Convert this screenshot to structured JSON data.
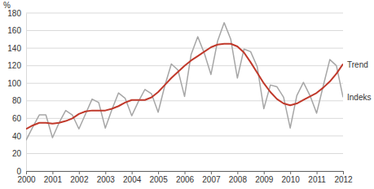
{
  "chart_data": {
    "type": "line",
    "y_label": "%",
    "x": [
      2000,
      2000.25,
      2000.5,
      2000.75,
      2001,
      2001.25,
      2001.5,
      2001.75,
      2002,
      2002.25,
      2002.5,
      2002.75,
      2003,
      2003.25,
      2003.5,
      2003.75,
      2004,
      2004.25,
      2004.5,
      2004.75,
      2005,
      2005.25,
      2005.5,
      2005.75,
      2006,
      2006.25,
      2006.5,
      2006.75,
      2007,
      2007.25,
      2007.5,
      2007.75,
      2008,
      2008.25,
      2008.5,
      2008.75,
      2009,
      2009.25,
      2009.5,
      2009.75,
      2010,
      2010.25,
      2010.5,
      2010.75,
      2011,
      2011.25,
      2011.5,
      2011.75,
      2012
    ],
    "series": [
      {
        "name": "Indeks",
        "color": "#a6a6a6",
        "values": [
          35,
          50,
          64,
          64,
          38,
          55,
          69,
          64,
          48,
          65,
          82,
          78,
          49,
          70,
          89,
          83,
          63,
          79,
          93,
          88,
          67,
          97,
          122,
          115,
          85,
          133,
          153,
          134,
          110,
          148,
          169,
          150,
          106,
          139,
          136,
          119,
          71,
          98,
          96,
          84,
          49,
          86,
          101,
          86,
          66,
          97,
          127,
          120,
          84
        ]
      },
      {
        "name": "Trend",
        "color": "#c0392b",
        "values": [
          48,
          52,
          55,
          55,
          54,
          55,
          57,
          60,
          65,
          68,
          69,
          69,
          69,
          71,
          74,
          78,
          81,
          81,
          81,
          84,
          90,
          98,
          106,
          113,
          120,
          126,
          131,
          136,
          141,
          144,
          145,
          145,
          142,
          135,
          124,
          112,
          100,
          90,
          82,
          77,
          75,
          77,
          81,
          85,
          89,
          95,
          102,
          111,
          122
        ]
      }
    ],
    "xlim": [
      2000,
      2012
    ],
    "xticks": [
      2000,
      2001,
      2002,
      2003,
      2004,
      2005,
      2006,
      2007,
      2008,
      2009,
      2010,
      2011,
      2012
    ],
    "ylim": [
      0,
      180
    ],
    "yticks": [
      0,
      20,
      40,
      60,
      80,
      100,
      120,
      140,
      160,
      180
    ],
    "grid": true,
    "legend": "right"
  }
}
